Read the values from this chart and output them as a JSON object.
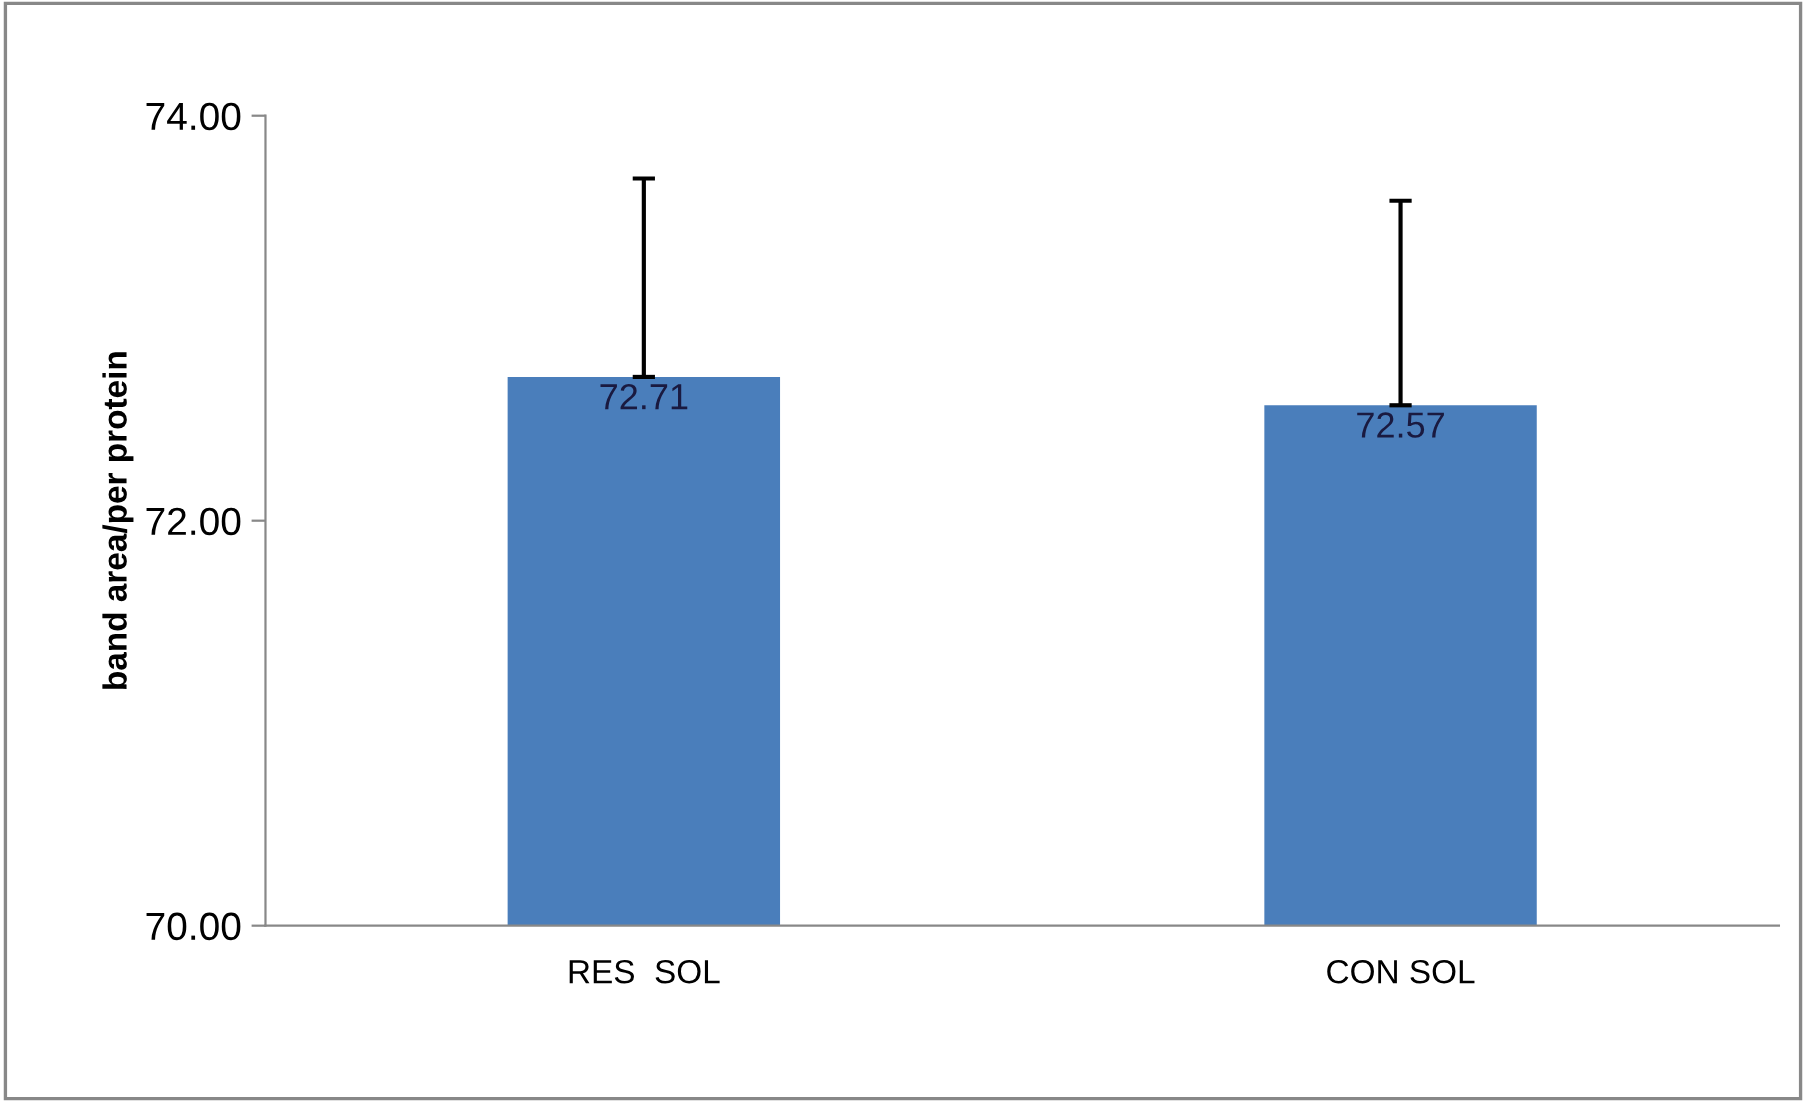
{
  "chart_data": {
    "type": "bar",
    "ylabel": "band area/per protein",
    "categories": [
      "RES  SOL",
      "CON SOL"
    ],
    "series": [
      {
        "color": "#4a7ebb",
        "values": [
          72.71,
          72.57
        ],
        "errors": [
          0.98,
          1.01
        ]
      }
    ],
    "data_labels": true,
    "ylim": [
      70,
      74
    ],
    "yticks": [
      {
        "value": 70,
        "label": "70.00"
      },
      {
        "value": 72,
        "label": "72.00"
      },
      {
        "value": 74,
        "label": "74.00"
      }
    ],
    "grid": false,
    "legend": false
  }
}
